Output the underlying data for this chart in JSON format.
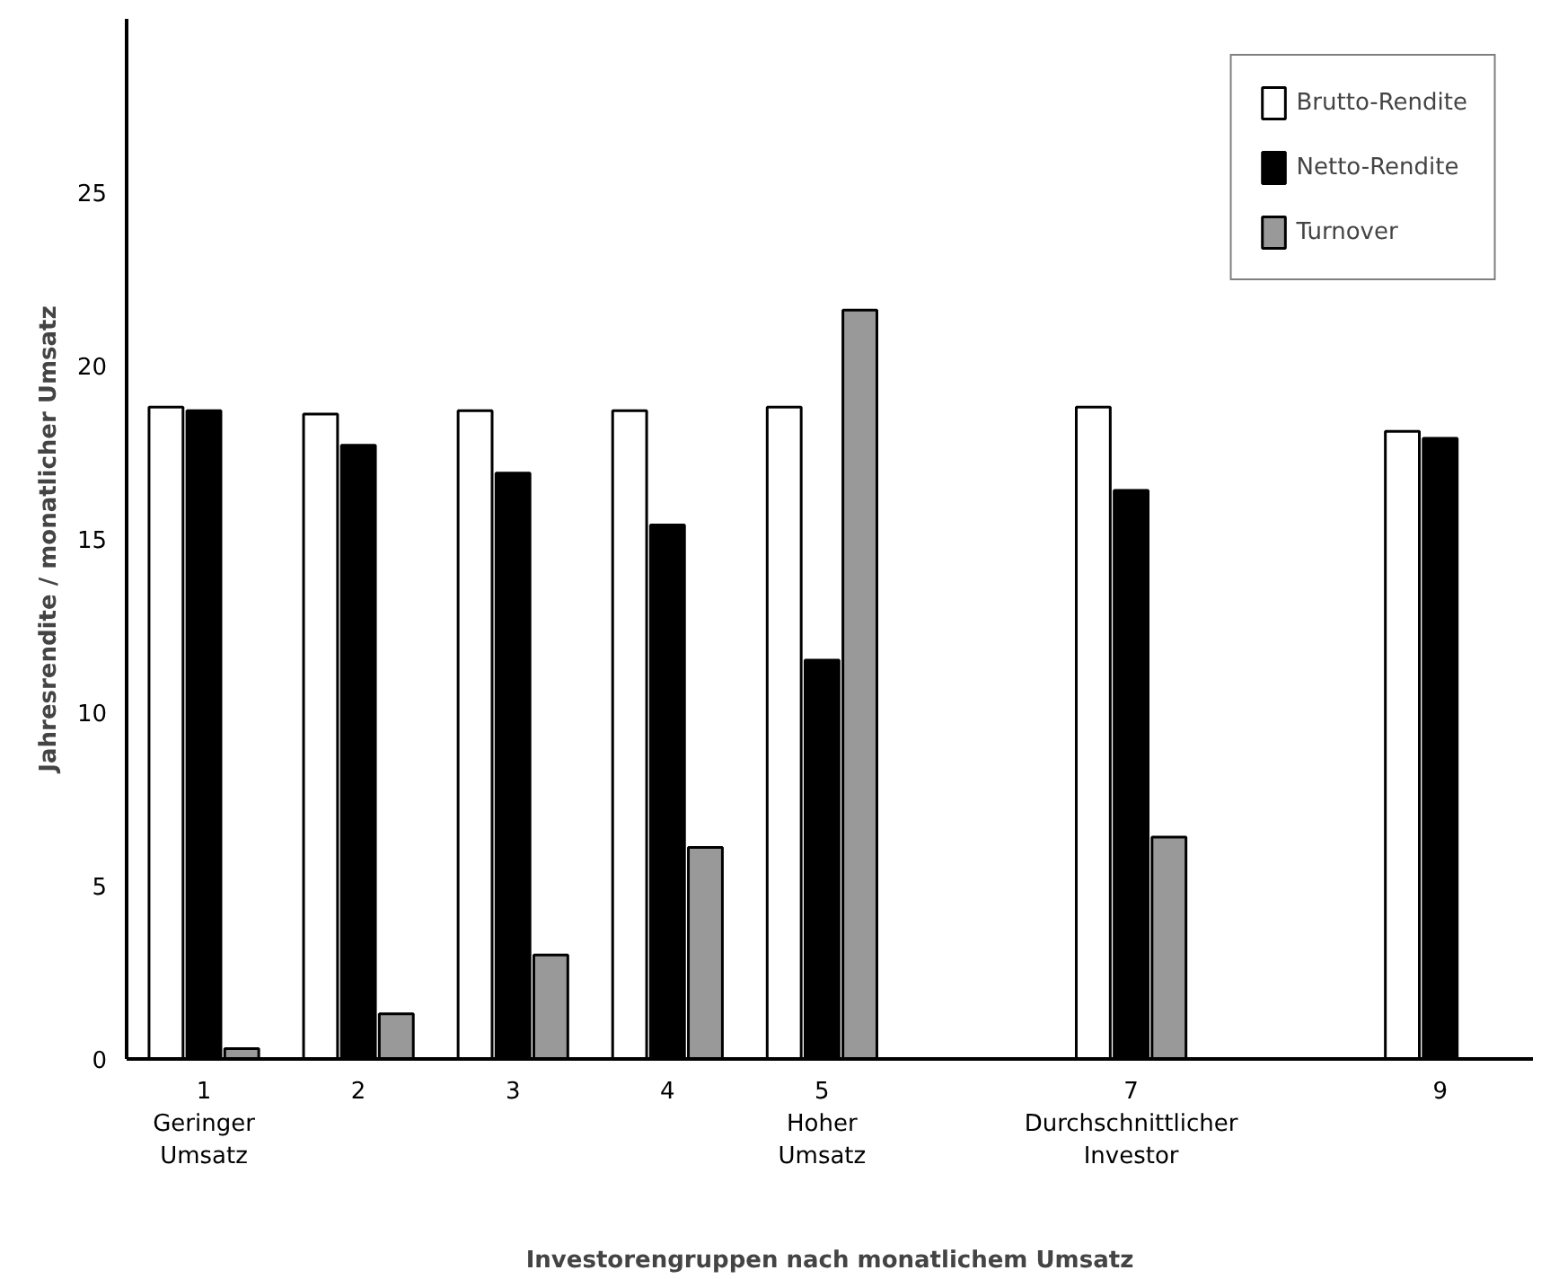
{
  "chart_data": {
    "type": "bar",
    "xlabel": "Investorengruppen nach monatlichem Umsatz",
    "ylabel": "Jahresrendite / monatlicher Umsatz",
    "x": [
      1,
      2,
      3,
      4,
      5,
      7,
      9
    ],
    "xlim": [
      0.5,
      9.6
    ],
    "xticks": [
      {
        "value": 1,
        "label": "1\nGeringer\nUmsatz"
      },
      2,
      3,
      4,
      {
        "value": 5,
        "label": "5\nHoher\nUmsatz"
      },
      {
        "value": 7,
        "label": "7\nDurchschnittlicher\nInvestor"
      },
      9
    ],
    "ylim": [
      0,
      30
    ],
    "yticks": [
      0,
      5,
      10,
      15,
      20,
      25
    ],
    "series": [
      {
        "name": "Brutto-Rendite",
        "color": "#ffffff",
        "values": [
          18.8,
          18.6,
          18.7,
          18.7,
          18.8,
          18.8,
          18.1
        ]
      },
      {
        "name": "Netto-Rendite",
        "color": "#000000",
        "values": [
          18.7,
          17.7,
          16.9,
          15.4,
          11.5,
          16.4,
          17.9
        ]
      },
      {
        "name": "Turnover",
        "color": "#999999",
        "values": [
          0.3,
          1.3,
          3.0,
          6.1,
          21.6,
          6.4,
          null
        ]
      }
    ],
    "grid": false,
    "legend": "top right"
  }
}
